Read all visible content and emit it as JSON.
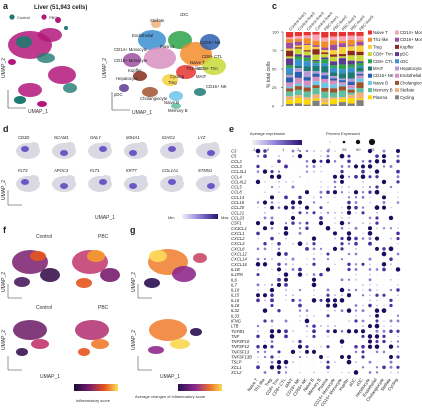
{
  "panel_letters": {
    "a": "a",
    "c": "c",
    "d": "d",
    "e": "e",
    "f": "f",
    "g": "g"
  },
  "panel_a": {
    "title": "Liver (51,943 cells)",
    "legend": [
      {
        "label": "Control",
        "color": "#1f7a72"
      },
      {
        "label": "PBC",
        "color": "#b3177a"
      }
    ],
    "axis_x": "UMAP_1",
    "axis_y": "UMAP_2",
    "cell_labels": [
      "Stellate",
      "cDC",
      "Endothelial",
      "CD14+ Monocyte",
      "Plasma",
      "CD16+ Monocyte",
      "Kupffer",
      "Naive T",
      "Th1-like",
      "Cycling",
      "Treg",
      "Hepatocyte",
      "pDC",
      "Cholangiocyte",
      "Naive B",
      "Memory B",
      "CD16+ NK",
      "CD8+ CTL",
      "CD8+ Trm",
      "MAIT",
      "CD56+ NK"
    ]
  },
  "panel_c": {
    "y_label": "% total cells",
    "samples": [
      "Control-liver1",
      "Control-liver2",
      "Control-liver3",
      "Control-liver4",
      "PBC-liver1",
      "PBC-liver2",
      "PBC-liver3",
      "PBC-liver4",
      "PBC-liver5"
    ],
    "legend": [
      {
        "label": "Naive T",
        "color": "#e8322f"
      },
      {
        "label": "CD14+ Monocyte",
        "color": "#f6a6b8"
      },
      {
        "label": "Th1-like",
        "color": "#f28c2a"
      },
      {
        "label": "CD16+ Monocyte",
        "color": "#9c4fa0"
      },
      {
        "label": "Treg",
        "color": "#f7d13b"
      },
      {
        "label": "Kupffer",
        "color": "#8a2a1c"
      },
      {
        "label": "CD8+ Trm",
        "color": "#c9d93a"
      },
      {
        "label": "pDC",
        "color": "#5b3a8f"
      },
      {
        "label": "CD8+ CTL",
        "color": "#2ea34a"
      },
      {
        "label": "cDC",
        "color": "#3a8fd0"
      },
      {
        "label": "MAIT",
        "color": "#1f7a72"
      },
      {
        "label": "Hepatocyte",
        "color": "#b69ad6"
      },
      {
        "label": "CD16+ NK",
        "color": "#2b5fb0"
      },
      {
        "label": "Endothelial",
        "color": "#d68fc0"
      },
      {
        "label": "Naive B",
        "color": "#6ec6e8"
      },
      {
        "label": "Cholangiocyte",
        "color": "#a0522d"
      },
      {
        "label": "Memory B",
        "color": "#5fbf9f"
      },
      {
        "label": "Stellate",
        "color": "#f0b27a"
      },
      {
        "label": "Plasma",
        "color": "#ffd800"
      },
      {
        "label": "Cycling",
        "color": "#7f7f7f"
      }
    ],
    "ticks": [
      "0",
      "25",
      "50",
      "75",
      "100"
    ]
  },
  "panel_d": {
    "genes_row1": [
      "CD3D",
      "NCAM1",
      "GNLY",
      "MS4A1",
      "IGHG1",
      "LYZ"
    ],
    "genes_row2": [
      "FLT3",
      "APOC3",
      "FLT1",
      "KRT7",
      "COL1A1",
      "STMN1"
    ],
    "axis_x": "UMAP_1",
    "axis_y": "UMAP_2",
    "scale_min": "Min",
    "scale_max": "Max"
  },
  "panel_e": {
    "legend_avg_title": "Average expression",
    "legend_avg_ticks": [
      "-1",
      "0",
      "1",
      "2"
    ],
    "legend_pct_title": "Percent Expressed",
    "legend_pct_ticks": [
      "0",
      "25",
      "50",
      "75"
    ],
    "genes": [
      "C3",
      "C5",
      "CCL2",
      "CCL3",
      "CCL3L1",
      "CCL4",
      "CCL4L2",
      "CCL5",
      "CCL8",
      "CCL14",
      "CCL18",
      "CCL20",
      "CCL21",
      "CCL23",
      "CSF1",
      "CX3CL1",
      "CXCL1",
      "CXCL2",
      "CXCL3",
      "CXCL8",
      "CXCL12",
      "CXCL14",
      "CXCL16",
      "IL1B",
      "IL1RN",
      "IL6",
      "IL7",
      "IL10",
      "IL15",
      "IL16",
      "IL18",
      "IL32",
      "IL33",
      "IFNG",
      "LTB",
      "TGFB1",
      "TNF",
      "TNFSF10",
      "TNFSF12",
      "TNFSF13",
      "TNFSF13B",
      "TSLP",
      "XCL1",
      "XCL2"
    ],
    "cell_types": [
      "Naive T",
      "Th1-like",
      "Treg",
      "CD8+ Trm",
      "CD8+ CTL",
      "MAIT",
      "CD16+ NK",
      "CD56+ NK",
      "Naive B",
      "Memory B",
      "Plasma",
      "CD14+ Monocyte",
      "CD16+ Monocyte",
      "Kupffer",
      "pDC",
      "cDC",
      "Hepatocyte",
      "Endothelial",
      "Cholangiocyte",
      "Stellate",
      "Cycling"
    ]
  },
  "panel_f": {
    "label_control": "Control",
    "label_pbc": "PBC",
    "axis_x": "UMAP_1",
    "axis_y": "UMAP_2",
    "legend_title": "Inflammatory score"
  },
  "panel_g": {
    "axis_x": "UMAP_1",
    "axis_y": "UMAP_2",
    "legend_title": "Average changes of inflammatory score"
  }
}
